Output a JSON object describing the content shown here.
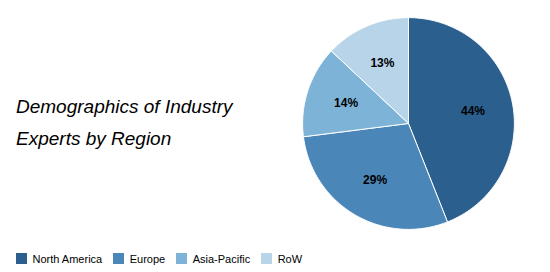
{
  "chart_data": {
    "type": "pie",
    "title": "Demographics of Industry",
    "subtitle": "Experts by Region",
    "categories": [
      "North America",
      "Europe",
      "Asia-Pacific",
      "RoW"
    ],
    "values": [
      44,
      29,
      14,
      13
    ],
    "value_labels": [
      "44%",
      "29%",
      "14%",
      "13%"
    ],
    "colors": [
      "#2B5F8E",
      "#4A86B8",
      "#7EB3D8",
      "#B8D4E8"
    ],
    "data_labels": true,
    "legend": "lower left"
  }
}
